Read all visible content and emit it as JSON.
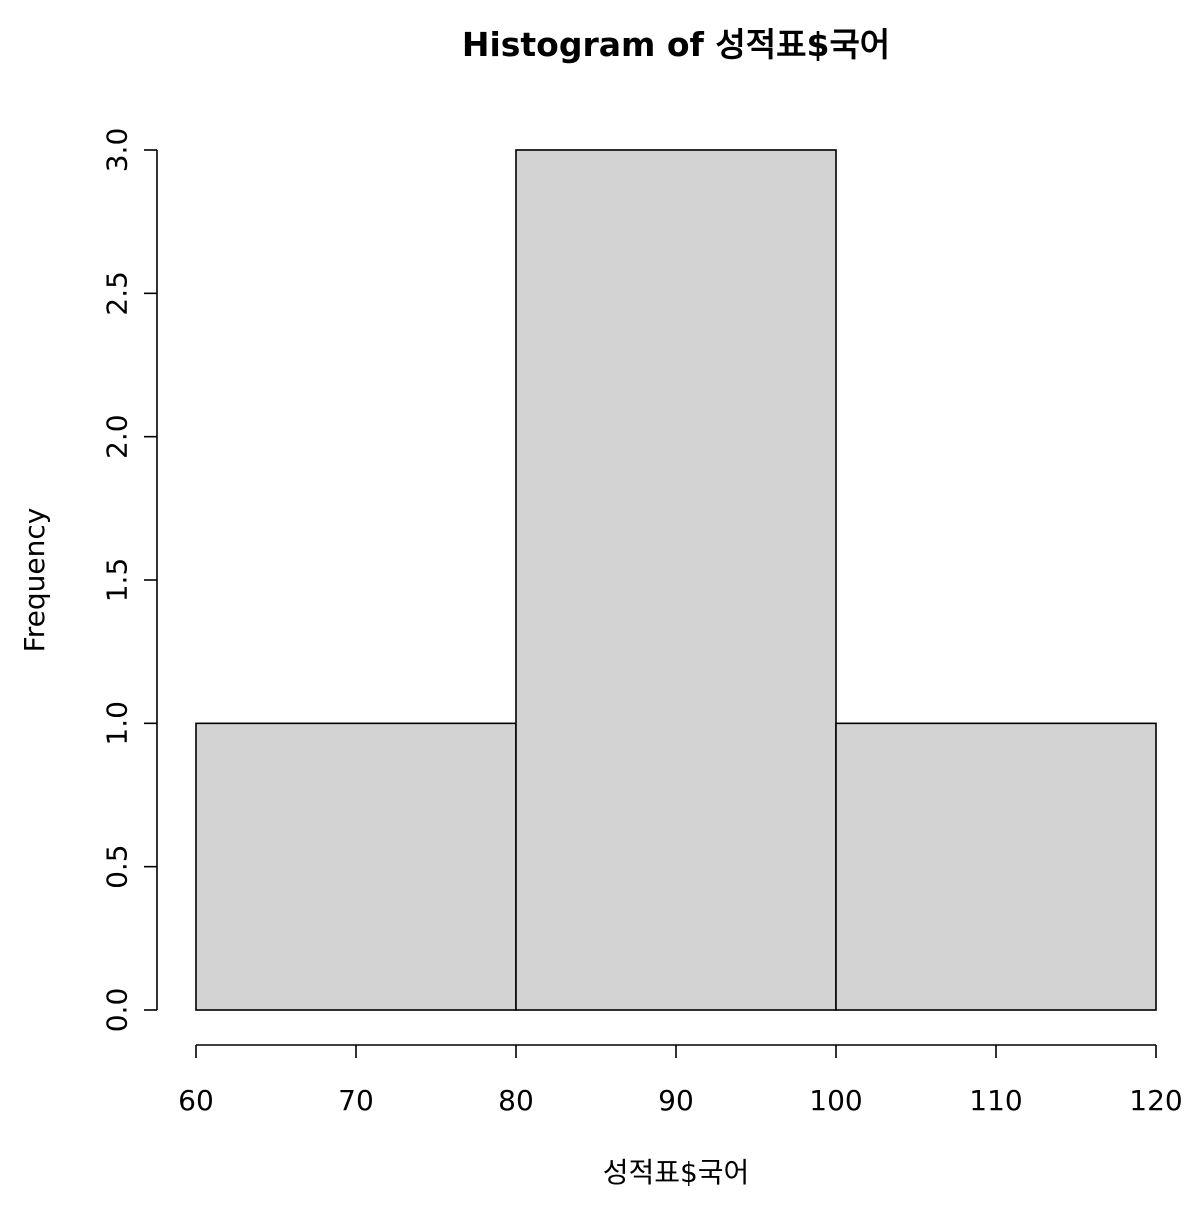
{
  "chart_data": {
    "type": "bar",
    "title": "Histogram of 성적표$국어",
    "xlabel": "성적표$국어",
    "ylabel": "Frequency",
    "bins": [
      {
        "from": 60,
        "to": 80,
        "count": 1
      },
      {
        "from": 80,
        "to": 100,
        "count": 3
      },
      {
        "from": 100,
        "to": 120,
        "count": 1
      }
    ],
    "xlim": [
      60,
      120
    ],
    "ylim": [
      0,
      3
    ],
    "x_ticks": [
      "60",
      "70",
      "80",
      "90",
      "100",
      "110",
      "120"
    ],
    "y_ticks": [
      "0.0",
      "0.5",
      "1.0",
      "1.5",
      "2.0",
      "2.5",
      "3.0"
    ],
    "grid": false,
    "legend": "none",
    "bar_color": "#d3d3d3",
    "edge_color": "#000000"
  }
}
